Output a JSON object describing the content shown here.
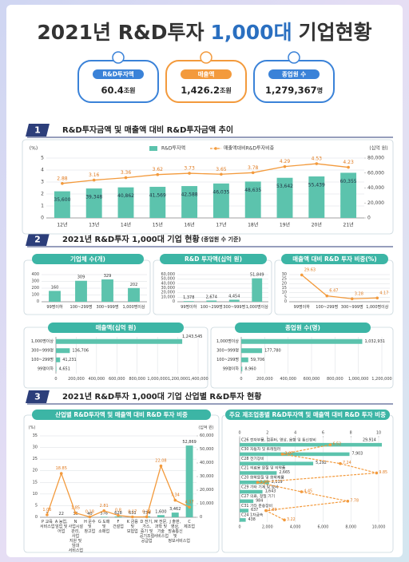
{
  "header": {
    "title": [
      "2021년 R&D투자",
      "1,000대",
      "기업현황"
    ]
  },
  "kpis": [
    {
      "label": "R&D투자액",
      "value": "60.4",
      "unit": "조원"
    },
    {
      "label": "매출액",
      "value": "1,426.2",
      "unit": "조원"
    },
    {
      "label": "종업원 수",
      "value": "1,279,367",
      "unit": "명"
    }
  ],
  "sections": [
    {
      "number": "1",
      "title": "R&D투자금액 및 매출액 대비 R&D투자금액 추이"
    },
    {
      "number": "2",
      "title": "2021년 R&D투자 1,000대 기업 현황",
      "note": "(종업원 수 기준)"
    },
    {
      "number": "3",
      "title": "2021년 R&D투자 1,000대 기업 산업별 R&D투자 현황"
    }
  ],
  "chart_data": [
    {
      "type": "bar",
      "legend": "top",
      "grid": true,
      "categories": [
        "12년",
        "13년",
        "14년",
        "15년",
        "16년",
        "17년",
        "18년",
        "19년",
        "20년",
        "21년"
      ],
      "ylabel": "(%)",
      "y2label": "(십억 원)",
      "ylim": [
        0,
        5
      ],
      "yticks": [
        0,
        1,
        2,
        3,
        4,
        5
      ],
      "y2lim": [
        0,
        80000
      ],
      "y2ticks": [
        0,
        {
          "value": 20000,
          "label": "20,000"
        },
        {
          "value": 40000,
          "label": "40,000"
        },
        {
          "value": 60000,
          "label": "60,000"
        },
        {
          "value": 80000,
          "label": "80,000"
        }
      ],
      "series": [
        {
          "name": "R&D투자액",
          "type": "bar",
          "axis": "y2",
          "color": "#5cc3ad",
          "values": [
            35600,
            39348,
            40862,
            41569,
            42588,
            46035,
            48635,
            53642,
            55439,
            60355
          ],
          "value_labels": [
            "35,600",
            "39,348",
            "40,862",
            "41,569",
            "42,588",
            "46,035",
            "48,635",
            "53,642",
            "55,439",
            "60,355"
          ]
        },
        {
          "name": "매출액대비R&D투자비중",
          "type": "line",
          "color": "#f39a3c",
          "values": [
            2.88,
            3.16,
            3.36,
            3.62,
            3.73,
            3.65,
            3.78,
            4.29,
            4.53,
            4.23
          ]
        }
      ]
    },
    {
      "type": "bar",
      "title": "기업체 수(개)",
      "grid": true,
      "color": "#5cc3ad",
      "categories": [
        "99명이하",
        "100~299명",
        "300~999명",
        "1,000명이상"
      ],
      "values": [
        160,
        309,
        329,
        202
      ],
      "ylim": [
        0,
        400
      ],
      "yticks": [
        0,
        100,
        200,
        300,
        400
      ]
    },
    {
      "type": "bar",
      "title": "R&D 투자액(십억 원)",
      "grid": true,
      "color": "#5cc3ad",
      "categories": [
        "99명이하",
        "100~299명",
        "300~999명",
        "1,000명이상"
      ],
      "values": [
        1378,
        2674,
        4454,
        51849
      ],
      "value_labels": [
        "1,378",
        "2,674",
        "4,454",
        "51,849"
      ],
      "ylim": [
        0,
        60000
      ],
      "yticks": [
        0,
        {
          "value": 10000,
          "label": "10,000"
        },
        {
          "value": 20000,
          "label": "20,000"
        },
        {
          "value": 30000,
          "label": "30,000"
        },
        {
          "value": 40000,
          "label": "40,000"
        },
        {
          "value": 50000,
          "label": "50,000"
        },
        {
          "value": 60000,
          "label": "60,000"
        }
      ]
    },
    {
      "type": "line",
      "title": "매출액 대비 R&D 투자 비중(%)",
      "grid": true,
      "color": "#f39a3c",
      "categories": [
        "99명이하",
        "100~299명",
        "300~999명",
        "1,000명이상"
      ],
      "values": [
        29.63,
        6.47,
        3.28,
        4.17
      ],
      "ylim": [
        0,
        30
      ],
      "yticks": [
        0,
        5,
        10,
        15,
        20,
        25,
        30
      ]
    },
    {
      "type": "hbar",
      "title": "매출액(십억 원)",
      "grid": true,
      "color": "#5cc3ad",
      "categories": [
        "1,000명이상",
        "300~999명",
        "100~299명",
        "99명이하"
      ],
      "values": [
        1243545,
        136706,
        41231,
        4651
      ],
      "value_labels": [
        "1,243,545",
        "136,706",
        "41,231",
        "4,651"
      ],
      "xlim": [
        0,
        1400000
      ],
      "xticks": [
        0,
        {
          "value": 200000,
          "label": "200,000"
        },
        {
          "value": 400000,
          "label": "400,000"
        },
        {
          "value": 600000,
          "label": "600,000"
        },
        {
          "value": 800000,
          "label": "800,000"
        },
        {
          "value": 1000000,
          "label": "1,000,000"
        },
        {
          "value": 1200000,
          "label": "1,200,000"
        },
        {
          "value": 1400000,
          "label": "1,400,000"
        }
      ]
    },
    {
      "type": "hbar",
      "title": "종업원 수(명)",
      "grid": true,
      "color": "#5cc3ad",
      "categories": [
        "1,000명이상",
        "300~999명",
        "100~299명",
        "99명이하"
      ],
      "values": [
        1032931,
        177780,
        59706,
        8960
      ],
      "value_labels": [
        "1,032,931",
        "177,780",
        "59,706",
        "8,960"
      ],
      "xlim": [
        0,
        1200000
      ],
      "xticks": [
        0,
        {
          "value": 200000,
          "label": "200,000"
        },
        {
          "value": 400000,
          "label": "400,000"
        },
        {
          "value": 600000,
          "label": "600,000"
        },
        {
          "value": 800000,
          "label": "800,000"
        },
        {
          "value": 1000000,
          "label": "1,000,000"
        },
        {
          "value": 1200000,
          "label": "1,200,000"
        }
      ]
    },
    {
      "type": "bar",
      "title": "산업별 R&D투자액 및 매출액 대비 R&D 투자 비중",
      "grid": true,
      "categories": [
        "P 교육 서비스업",
        "A 농업, 임업 및 어업",
        "N 사업시설 관리, 사업 지원 및 임대 서비스업",
        "H 운수 및 창고업",
        "G 도매 및 소매업",
        "F 건설업",
        "K 금융 및 보험업",
        "D 전기, 가스, 증기 및 공기조절 공급업",
        "M 전문, 과학 및 기술 서비스업",
        "J 출판, 영상, 방송통신 및 정보서비스업",
        "C 제조업"
      ],
      "ylabel": "(%)",
      "y2label": "(십억 원)",
      "ylim": [
        0,
        35
      ],
      "yticks": [
        0,
        5,
        10,
        15,
        20,
        25,
        30,
        35
      ],
      "y2lim": [
        0,
        60000
      ],
      "y2ticks": [
        0,
        {
          "value": 10000,
          "label": "10,000"
        },
        {
          "value": 20000,
          "label": "20,000"
        },
        {
          "value": 30000,
          "label": "30,000"
        },
        {
          "value": 40000,
          "label": "40,000"
        },
        {
          "value": 50000,
          "label": "50,000"
        },
        {
          "value": 60000,
          "label": "60,000"
        }
      ],
      "series": [
        {
          "name": "R&D투자액",
          "type": "bar",
          "axis": "y2",
          "color": "#5cc3ad",
          "values": [
            1,
            22,
            36,
            40,
            376,
            628,
            631,
            734,
            1600,
            3462,
            52869
          ],
          "value_labels": [
            "1",
            "22",
            "36",
            "40",
            "376",
            "628",
            "631",
            "734",
            "1,600",
            "3,462",
            "52,869"
          ]
        },
        {
          "name": "매출액 대비 R&D 투자 비중",
          "type": "line",
          "color": "#f39a3c",
          "values": [
            1.06,
            18.85,
            1.85,
            0.18,
            2.81,
            0.8,
            0.17,
            0.18,
            22.08,
            7.34,
            4.37
          ]
        }
      ]
    },
    {
      "type": "hbar",
      "title": "주요 제조업종별 R&D투자액 및 매출액 대비 R&D 투자 비중",
      "grid": true,
      "categories": [
        "C26 전자부품, 컴퓨터, 영상, 음향 및 통신장비",
        "C30 자동차 및 트레일러",
        "C28 전기장비",
        "C21 의료용 물질 및 의약품",
        "C20 화학물질 및 화학제품",
        "C29 기타 기계 및 장비",
        "C27 의료, 정밀 기기",
        "C31 기타 운송장비",
        "C24 1차금속"
      ],
      "xlim": [
        0,
        10000
      ],
      "xticks": [
        0,
        {
          "value": 2000,
          "label": "2,000"
        },
        {
          "value": 4000,
          "label": "4,000"
        },
        {
          "value": 6000,
          "label": "6,000"
        },
        {
          "value": 8000,
          "label": "8,000"
        },
        {
          "value": 10000,
          "label": "10,000"
        }
      ],
      "x2lim": [
        0,
        10
      ],
      "x2ticks": [
        0,
        2,
        4,
        6,
        8,
        10
      ],
      "series": [
        {
          "name": "R&D투자액",
          "type": "bar",
          "color": "#5cc3ad",
          "values": [
            29914,
            7903,
            5292,
            2665,
            2119,
            1643,
            984,
            637,
            438
          ],
          "value_labels": [
            "29,914",
            "7,903",
            "5,292",
            "2,665",
            "2,119",
            "1,643",
            "984",
            "637",
            "438"
          ]
        },
        {
          "name": "매출액 대비 R&D 투자 비중",
          "type": "line",
          "axis": "x2",
          "color": "#f39a3c",
          "values": [
            6.52,
            3.07,
            7.24,
            9.85,
            1.29,
            4.45,
            7.78,
            1.89,
            3.22
          ]
        }
      ]
    }
  ]
}
